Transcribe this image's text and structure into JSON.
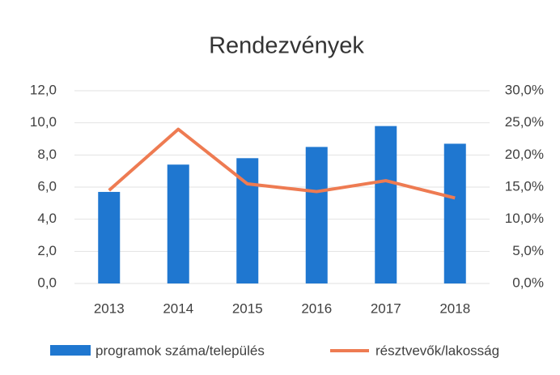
{
  "chart_data": {
    "type": "bar",
    "title": "Rendezvények",
    "categories": [
      "2013",
      "2014",
      "2015",
      "2016",
      "2017",
      "2018"
    ],
    "series": [
      {
        "name": "programok száma/település",
        "type": "bar",
        "color": "#1f77d0",
        "values": [
          5.7,
          7.4,
          7.8,
          8.5,
          9.8,
          8.7
        ]
      },
      {
        "name": "résztvevők/lakosság",
        "type": "line",
        "axis": "y2",
        "color": "#ee7b52",
        "values": [
          14.5,
          24.0,
          15.5,
          14.3,
          16.0,
          13.3
        ]
      }
    ],
    "ylim": [
      0,
      12
    ],
    "yticks": [
      {
        "value": 0,
        "label": "0,0"
      },
      {
        "value": 2,
        "label": "2,0"
      },
      {
        "value": 4,
        "label": "4,0"
      },
      {
        "value": 6,
        "label": "6,0"
      },
      {
        "value": 8,
        "label": "8,0"
      },
      {
        "value": 10,
        "label": "10,0"
      },
      {
        "value": 12,
        "label": "12,0"
      }
    ],
    "y2lim": [
      0,
      30
    ],
    "y2ticks": [
      {
        "value": 0,
        "label": "0,0%"
      },
      {
        "value": 5,
        "label": "5,0%"
      },
      {
        "value": 10,
        "label": "10,0%"
      },
      {
        "value": 15,
        "label": "15,0%"
      },
      {
        "value": 20,
        "label": "20,0%"
      },
      {
        "value": 25,
        "label": "25,0%"
      },
      {
        "value": 30,
        "label": "30,0%"
      }
    ],
    "grid": true,
    "legend": "bottom"
  }
}
